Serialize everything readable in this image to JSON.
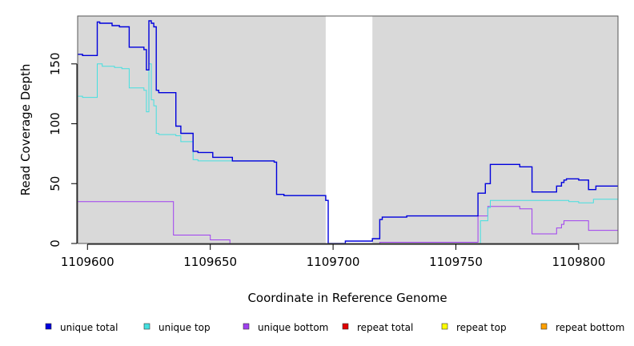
{
  "chart_data": {
    "type": "line",
    "title": "",
    "xlabel": "Coordinate in Reference Genome",
    "ylabel": "Read Coverage Depth",
    "xlim": [
      1109596,
      1109816
    ],
    "ylim": [
      0,
      190
    ],
    "x_ticks": [
      1109600,
      1109650,
      1109700,
      1109750,
      1109800
    ],
    "x_tick_labels": [
      "1109600",
      "1109650",
      "1109700",
      "1109750",
      "1109800"
    ],
    "y_ticks": [
      0,
      50,
      100,
      150
    ],
    "y_tick_labels": [
      "0",
      "50",
      "100",
      "150"
    ],
    "shaded_regions": [
      {
        "x0": 1109596,
        "x1": 1109697
      },
      {
        "x0": 1109716,
        "x1": 1109816
      }
    ],
    "shade_color": "#d9d9d9",
    "grid": false,
    "legend_position": "bottom",
    "series": [
      {
        "name": "unique total",
        "color": "#0000dd",
        "steps": [
          [
            1109596,
            158
          ],
          [
            1109598,
            157
          ],
          [
            1109604,
            185
          ],
          [
            1109605,
            184
          ],
          [
            1109610,
            182
          ],
          [
            1109613,
            181
          ],
          [
            1109617,
            164
          ],
          [
            1109623,
            162
          ],
          [
            1109624,
            145
          ],
          [
            1109625,
            186
          ],
          [
            1109626,
            184
          ],
          [
            1109627,
            181
          ],
          [
            1109628,
            128
          ],
          [
            1109629,
            126
          ],
          [
            1109636,
            98
          ],
          [
            1109638,
            92
          ],
          [
            1109643,
            77
          ],
          [
            1109645,
            76
          ],
          [
            1109651,
            72
          ],
          [
            1109659,
            69
          ],
          [
            1109676,
            68
          ],
          [
            1109677,
            41
          ],
          [
            1109680,
            40
          ],
          [
            1109697,
            36
          ],
          [
            1109698,
            0
          ],
          [
            1109705,
            2
          ],
          [
            1109716,
            4
          ],
          [
            1109719,
            20
          ],
          [
            1109720,
            22
          ],
          [
            1109730,
            23
          ],
          [
            1109759,
            42
          ],
          [
            1109762,
            50
          ],
          [
            1109764,
            66
          ],
          [
            1109776,
            64
          ],
          [
            1109781,
            43
          ],
          [
            1109791,
            48
          ],
          [
            1109793,
            51
          ],
          [
            1109794,
            53
          ],
          [
            1109795,
            54
          ],
          [
            1109800,
            53
          ],
          [
            1109804,
            45
          ],
          [
            1109807,
            48
          ],
          [
            1109816,
            48
          ]
        ]
      },
      {
        "name": "unique top",
        "color": "#44e0e0",
        "steps": [
          [
            1109596,
            123
          ],
          [
            1109598,
            122
          ],
          [
            1109604,
            150
          ],
          [
            1109606,
            148
          ],
          [
            1109611,
            147
          ],
          [
            1109614,
            146
          ],
          [
            1109617,
            130
          ],
          [
            1109623,
            128
          ],
          [
            1109624,
            110
          ],
          [
            1109625,
            150
          ],
          [
            1109626,
            120
          ],
          [
            1109627,
            115
          ],
          [
            1109628,
            92
          ],
          [
            1109629,
            91
          ],
          [
            1109636,
            90
          ],
          [
            1109638,
            85
          ],
          [
            1109643,
            70
          ],
          [
            1109645,
            69
          ],
          [
            1109651,
            69
          ],
          [
            1109676,
            68
          ],
          [
            1109677,
            41
          ],
          [
            1109680,
            40
          ],
          [
            1109697,
            36
          ],
          [
            1109698,
            0
          ],
          [
            1109760,
            19
          ],
          [
            1109763,
            30
          ],
          [
            1109764,
            36
          ],
          [
            1109796,
            35
          ],
          [
            1109800,
            34
          ],
          [
            1109806,
            37
          ],
          [
            1109816,
            37
          ]
        ]
      },
      {
        "name": "unique bottom",
        "color": "#a040f0",
        "steps": [
          [
            1109596,
            35
          ],
          [
            1109635,
            7
          ],
          [
            1109650,
            3
          ],
          [
            1109658,
            0
          ],
          [
            1109719,
            1
          ],
          [
            1109731,
            1
          ],
          [
            1109759,
            23
          ],
          [
            1109763,
            31
          ],
          [
            1109776,
            29
          ],
          [
            1109781,
            8
          ],
          [
            1109791,
            13
          ],
          [
            1109793,
            16
          ],
          [
            1109794,
            19
          ],
          [
            1109804,
            11
          ],
          [
            1109816,
            11
          ]
        ]
      },
      {
        "name": "repeat total",
        "color": "#e00000",
        "steps": [
          [
            1109596,
            0
          ],
          [
            1109816,
            0
          ]
        ]
      },
      {
        "name": "repeat top",
        "color": "#ffff00",
        "steps": [
          [
            1109596,
            0
          ],
          [
            1109816,
            0
          ]
        ]
      },
      {
        "name": "repeat bottom",
        "color": "#ffa000",
        "steps": [
          [
            1109596,
            0
          ],
          [
            1109816,
            0
          ]
        ]
      }
    ]
  }
}
